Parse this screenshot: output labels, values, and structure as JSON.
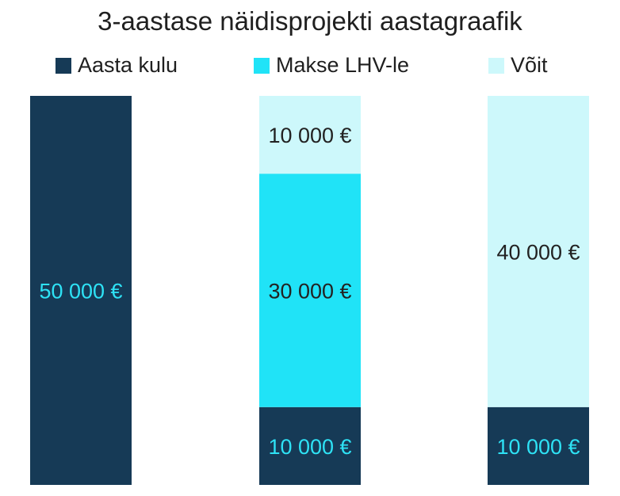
{
  "colors": {
    "cost": "#163a56",
    "payment": "#20e3f7",
    "profit": "#cdf8fb",
    "label_on_dark": "#2ee2f5",
    "label_on_light": "#222222"
  },
  "chart_data": {
    "type": "bar",
    "stacked": true,
    "title": "3-aastase näidisprojekti aastagraafik",
    "xlabel": "",
    "ylabel": "",
    "ylim": [
      0,
      50000
    ],
    "categories": [
      "",
      "",
      ""
    ],
    "legend": [
      {
        "label": "Aasta kulu",
        "color_key": "cost"
      },
      {
        "label": "Makse LHV-le",
        "color_key": "payment"
      },
      {
        "label": "Võit",
        "color_key": "profit"
      }
    ],
    "columns": [
      {
        "segments": [
          {
            "series": "Aasta kulu",
            "value": 50000,
            "label": "50 000 €",
            "color_key": "cost"
          }
        ]
      },
      {
        "segments": [
          {
            "series": "Aasta kulu",
            "value": 10000,
            "label": "10 000 €",
            "color_key": "cost"
          },
          {
            "series": "Makse LHV-le",
            "value": 30000,
            "label": "30 000 €",
            "color_key": "payment"
          },
          {
            "series": "Võit",
            "value": 10000,
            "label": "10 000 €",
            "color_key": "profit"
          }
        ]
      },
      {
        "segments": [
          {
            "series": "Aasta kulu",
            "value": 10000,
            "label": "10 000 €",
            "color_key": "cost"
          },
          {
            "series": "Võit",
            "value": 40000,
            "label": "40 000 €",
            "color_key": "profit"
          }
        ]
      }
    ]
  }
}
